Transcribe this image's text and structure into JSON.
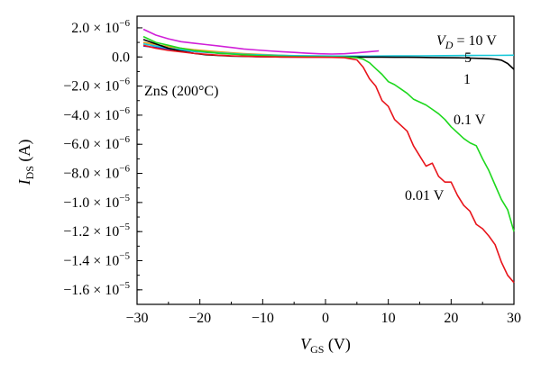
{
  "chart_data": {
    "type": "line",
    "title": "",
    "xlabel": {
      "main": "V",
      "sub": "GS",
      "unit": " (V)"
    },
    "ylabel": {
      "main": "I",
      "sub": "DS",
      "unit": " (A)"
    },
    "xlim": [
      -30,
      30
    ],
    "ylim": [
      -1.7e-05,
      2.8e-06
    ],
    "grid": false,
    "x_ticks": [
      {
        "value": -30,
        "label": "−30"
      },
      {
        "value": -20,
        "label": "−20"
      },
      {
        "value": -10,
        "label": "−10"
      },
      {
        "value": 0,
        "label": "0"
      },
      {
        "value": 10,
        "label": "10"
      },
      {
        "value": 20,
        "label": "20"
      },
      {
        "value": 30,
        "label": "30"
      }
    ],
    "y_ticks": [
      {
        "value": 2e-06,
        "label": "2.0 × 10",
        "exp": "−6"
      },
      {
        "value": 0,
        "label": "0.0",
        "exp": ""
      },
      {
        "value": -2e-06,
        "label": "−2.0 × 10",
        "exp": "−6"
      },
      {
        "value": -4e-06,
        "label": "−4.0 × 10",
        "exp": "−6"
      },
      {
        "value": -6e-06,
        "label": "−6.0 × 10",
        "exp": "−6"
      },
      {
        "value": -8e-06,
        "label": "−8.0 × 10",
        "exp": "−6"
      },
      {
        "value": -1e-05,
        "label": "−1.0 × 10",
        "exp": "−5"
      },
      {
        "value": -1.2e-05,
        "label": "−1.2 × 10",
        "exp": "−5"
      },
      {
        "value": -1.4e-05,
        "label": "−1.4 × 10",
        "exp": "−5"
      },
      {
        "value": -1.6e-05,
        "label": "−1.6 × 10",
        "exp": "−5"
      }
    ],
    "sample_label": "ZnS (200°C)",
    "vd_label": {
      "main": "V",
      "sub": "D",
      "rest": " = 10 V"
    },
    "series": [
      {
        "label": "0.01 V",
        "color": "#e8141b",
        "x": [
          -29,
          -27,
          -25,
          -23,
          -21,
          -19,
          -17,
          -15,
          -13,
          -11,
          -9,
          -7,
          -5,
          -3,
          -1,
          1,
          3,
          5,
          6,
          7,
          8,
          9,
          10,
          11,
          12,
          13,
          14,
          15,
          16,
          17,
          18,
          19,
          20,
          21,
          22,
          23,
          24,
          25,
          26,
          27,
          28,
          29,
          30
        ],
        "y": [
          8e-07,
          6e-07,
          4.5e-07,
          3.5e-07,
          2.5e-07,
          1.8e-07,
          1.2e-07,
          8e-08,
          5e-08,
          3e-08,
          1e-08,
          0,
          -1e-08,
          -2e-08,
          -2e-08,
          -3e-08,
          -5e-08,
          -2e-07,
          -7e-07,
          -1.5e-06,
          -2e-06,
          -3e-06,
          -3.4e-06,
          -4.3e-06,
          -4.7e-06,
          -5.1e-06,
          -6.1e-06,
          -6.8e-06,
          -7.5e-06,
          -7.3e-06,
          -8.2e-06,
          -8.6e-06,
          -8.6e-06,
          -9.5e-06,
          -1.02e-05,
          -1.06e-05,
          -1.15e-05,
          -1.18e-05,
          -1.23e-05,
          -1.29e-05,
          -1.41e-05,
          -1.5e-05,
          -1.55e-05
        ]
      },
      {
        "label": "0.1 V",
        "color": "#1ed81e",
        "x": [
          -29,
          -27,
          -25,
          -23,
          -21,
          -19,
          -17,
          -15,
          -13,
          -11,
          -9,
          -7,
          -5,
          -3,
          -1,
          1,
          3,
          5,
          6,
          7,
          8,
          9,
          10,
          11,
          12,
          13,
          14,
          15,
          16,
          17,
          18,
          19,
          20,
          21,
          22,
          23,
          24,
          25,
          26,
          27,
          28,
          29,
          30
        ],
        "y": [
          1.4e-06,
          1e-06,
          8e-07,
          6e-07,
          4.5e-07,
          3.5e-07,
          2.5e-07,
          2e-07,
          1.5e-07,
          1e-07,
          8e-08,
          5e-08,
          3e-08,
          2e-08,
          1e-08,
          0,
          -1e-08,
          -5e-08,
          -1.5e-07,
          -4e-07,
          -8e-07,
          -1.2e-06,
          -1.7e-06,
          -1.9e-06,
          -2.2e-06,
          -2.5e-06,
          -2.9e-06,
          -3.1e-06,
          -3.3e-06,
          -3.6e-06,
          -3.9e-06,
          -4.3e-06,
          -4.8e-06,
          -5.2e-06,
          -5.6e-06,
          -5.9e-06,
          -6.1e-06,
          -7e-06,
          -7.8e-06,
          -8.8e-06,
          -9.8e-06,
          -1.05e-05,
          -1.2e-05
        ]
      },
      {
        "label": "1",
        "color": "#000000",
        "x": [
          -29,
          -27,
          -25,
          -23,
          -21,
          -19,
          -17,
          -15,
          -13,
          -11,
          -9,
          -7,
          -5,
          -3,
          -1,
          1,
          3,
          5,
          7,
          9,
          11,
          13,
          15,
          17,
          19,
          21,
          23,
          25,
          26,
          27,
          28,
          29,
          30
        ],
        "y": [
          1.2e-06,
          9e-07,
          6e-07,
          4e-07,
          2.5e-07,
          1.5e-07,
          1e-07,
          6e-08,
          4e-08,
          2e-08,
          1e-08,
          0,
          0,
          0,
          0,
          0,
          0,
          0,
          -1e-08,
          -1e-08,
          -2e-08,
          -2e-08,
          -3e-08,
          -4e-08,
          -5e-08,
          -6e-08,
          -8e-08,
          -1e-07,
          -1.2e-07,
          -1.5e-07,
          -2.2e-07,
          -4.5e-07,
          -8.5e-07
        ]
      },
      {
        "label": "5",
        "color": "#17c8d8",
        "x": [
          -29,
          -25,
          -21,
          -17,
          -13,
          -9,
          -5,
          -1,
          3,
          7,
          11,
          15,
          19,
          23,
          27,
          30
        ],
        "y": [
          9e-07,
          6e-07,
          4e-07,
          2.8e-07,
          1.8e-07,
          1.3e-07,
          9e-08,
          7e-08,
          6e-08,
          6e-08,
          7e-08,
          8e-08,
          9e-08,
          1e-07,
          1.1e-07,
          1.2e-07
        ]
      },
      {
        "label": "10 V",
        "color": "#d020d8",
        "x": [
          -29,
          -27,
          -25,
          -23,
          -21,
          -19,
          -17,
          -15,
          -13,
          -11,
          -9,
          -7,
          -5,
          -3,
          -1,
          1,
          3,
          5,
          7,
          8.5
        ],
        "y": [
          1.9e-06,
          1.5e-06,
          1.25e-06,
          1.05e-06,
          9.5e-07,
          8.5e-07,
          7.5e-07,
          6.5e-07,
          5.5e-07,
          4.8e-07,
          4.2e-07,
          3.6e-07,
          3.1e-07,
          2.6e-07,
          2.2e-07,
          2e-07,
          2.2e-07,
          2.8e-07,
          3.6e-07,
          4.2e-07
        ]
      },
      {
        "label": "",
        "color": "#2a2ad8",
        "x": [
          -29,
          -25,
          -21,
          -17,
          -13,
          -9,
          -5,
          -1,
          1
        ],
        "y": [
          7.5e-07,
          5.5e-07,
          3.8e-07,
          2.6e-07,
          1.7e-07,
          1.1e-07,
          6e-08,
          3e-08,
          2e-08
        ]
      },
      {
        "label": "",
        "color": "#e8a020",
        "x": [
          -29,
          -25,
          -21,
          -17,
          -13,
          -9,
          -5,
          -1,
          1
        ],
        "y": [
          1e-06,
          7e-07,
          5e-07,
          3.5e-07,
          2.3e-07,
          1.5e-07,
          8e-08,
          4e-08,
          3e-08
        ]
      }
    ]
  }
}
